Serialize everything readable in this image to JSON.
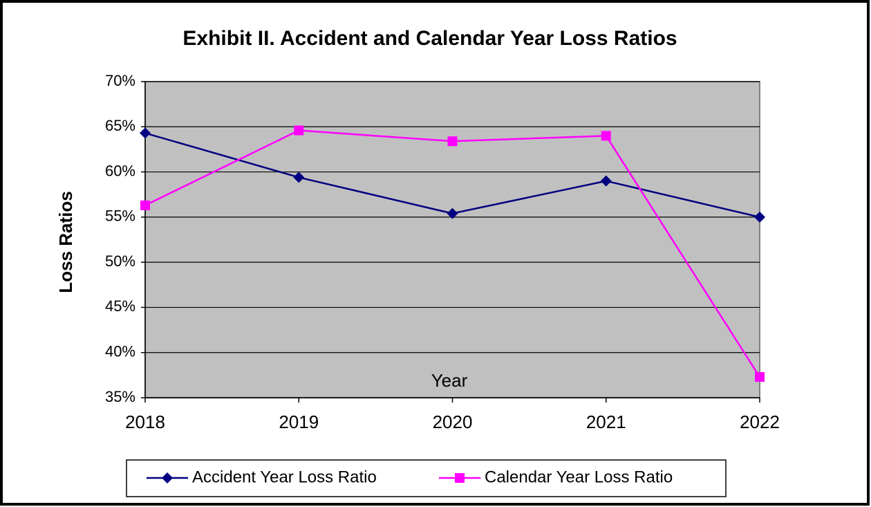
{
  "chart_data": {
    "type": "line",
    "title": "Exhibit II. Accident and Calendar Year Loss Ratios",
    "x_label": "Year",
    "y_label": "Loss Ratios",
    "categories": [
      "2018",
      "2019",
      "2020",
      "2021",
      "2022"
    ],
    "series": [
      {
        "name": "Accident Year Loss Ratio",
        "color": "#000080",
        "marker": "diamond",
        "values": [
          64.3,
          59.4,
          55.4,
          59.0,
          55.0
        ]
      },
      {
        "name": "Calendar Year Loss Ratio",
        "color": "#ff00ff",
        "marker": "square",
        "values": [
          56.3,
          64.6,
          63.4,
          64.0,
          37.3
        ]
      }
    ],
    "ylim": [
      35,
      70
    ],
    "yticks": [
      {
        "value": 35,
        "label": "35%"
      },
      {
        "value": 40,
        "label": "40%"
      },
      {
        "value": 45,
        "label": "45%"
      },
      {
        "value": 50,
        "label": "50%"
      },
      {
        "value": 55,
        "label": "55%"
      },
      {
        "value": 60,
        "label": "60%"
      },
      {
        "value": 65,
        "label": "65%"
      },
      {
        "value": 70,
        "label": "70%"
      }
    ],
    "grid": true,
    "legend": "bottom"
  }
}
